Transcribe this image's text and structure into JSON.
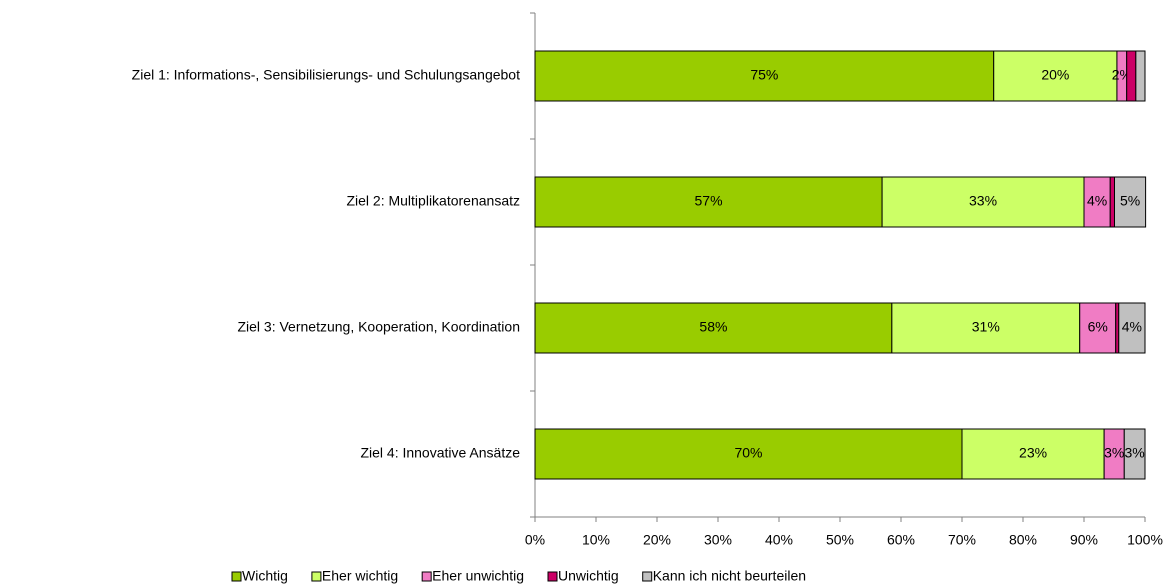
{
  "chart_data": {
    "type": "stacked_bar_horizontal",
    "categories": [
      "Ziel 1: Informations-, Sensibilisierungs- und Schulungsangebot",
      "Ziel 2: Multiplikatorenansatz",
      "Ziel 3: Vernetzung, Kooperation, Koordination",
      "Ziel 4: Innovative Ansätze"
    ],
    "series": [
      {
        "name": "Wichtig",
        "color": "#99cc00",
        "values": [
          75.2,
          56.9,
          58.5,
          70.0
        ],
        "value_labels": [
          "75%",
          "57%",
          "58%",
          "70%"
        ]
      },
      {
        "name": "Eher wichtig",
        "color": "#ccff66",
        "values": [
          20.2,
          33.1,
          30.8,
          23.3
        ],
        "value_labels": [
          "20%",
          "33%",
          "31%",
          "23%"
        ]
      },
      {
        "name": "Eher unwichtig",
        "color": "#f07cc4",
        "values": [
          1.6,
          4.3,
          5.9,
          3.3
        ],
        "value_labels": [
          "2%",
          "4%",
          "6%",
          "3%"
        ]
      },
      {
        "name": "Unwichtig",
        "color": "#cc0066",
        "values": [
          1.5,
          0.7,
          0.5,
          0
        ],
        "value_labels": [
          null,
          null,
          null,
          null
        ]
      },
      {
        "name": "Kann ich nicht beurteilen",
        "color": "#c0c0c0",
        "values": [
          1.5,
          5.1,
          4.3,
          3.4
        ],
        "value_labels": [
          null,
          "5%",
          "4%",
          "3%"
        ]
      }
    ],
    "xlim": [
      0,
      100
    ],
    "xticks": [
      {
        "value": 0,
        "label": "0%"
      },
      {
        "value": 10,
        "label": "10%"
      },
      {
        "value": 20,
        "label": "20%"
      },
      {
        "value": 30,
        "label": "30%"
      },
      {
        "value": 40,
        "label": "40%"
      },
      {
        "value": 50,
        "label": "50%"
      },
      {
        "value": 60,
        "label": "60%"
      },
      {
        "value": 70,
        "label": "70%"
      },
      {
        "value": 80,
        "label": "80%"
      },
      {
        "value": 90,
        "label": "90%"
      },
      {
        "value": 100,
        "label": "100%"
      }
    ],
    "legend": "bottom"
  }
}
